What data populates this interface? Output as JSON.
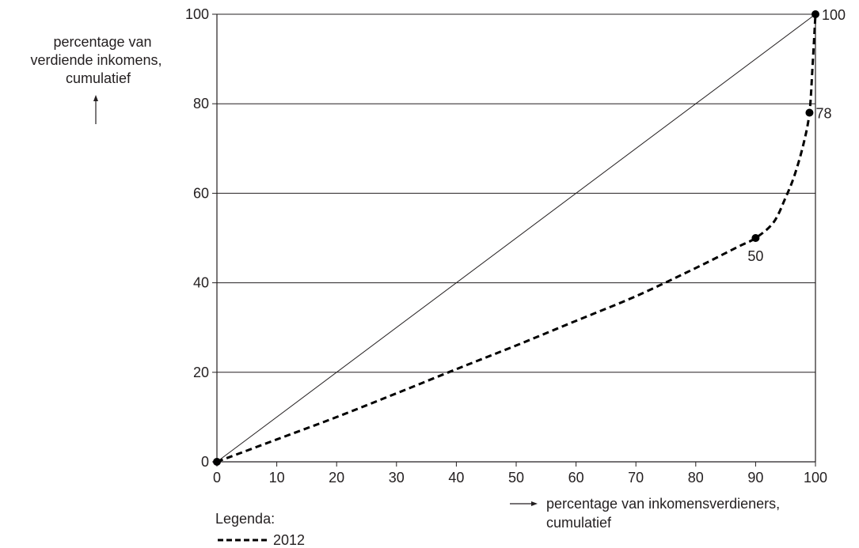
{
  "chart_data": {
    "type": "line",
    "xlabel": "percentage van inkomensverdieners, cumulatief",
    "xlabel_lines": [
      "percentage van inkomensverdieners,",
      "cumulatief"
    ],
    "ylabel": "percentage van verdiende inkomens, cumulatief",
    "ylabel_lines": [
      "percentage van",
      "verdiende inkomens,",
      "cumulatief"
    ],
    "xlim": [
      0,
      100
    ],
    "ylim": [
      0,
      100
    ],
    "x_ticks": [
      0,
      10,
      20,
      30,
      40,
      50,
      60,
      70,
      80,
      90,
      100
    ],
    "y_ticks": [
      0,
      20,
      40,
      60,
      80,
      100
    ],
    "grid": "horizontal",
    "legend": {
      "title": "Legenda:",
      "placement": "bottom-left",
      "entries": [
        {
          "label": "2012",
          "style": "dashed"
        }
      ]
    },
    "series": [
      {
        "name": "2012",
        "style": "dashed",
        "color": "#000000",
        "points": [
          {
            "x": 0,
            "y": 0
          },
          {
            "x": 10,
            "y": 5
          },
          {
            "x": 20,
            "y": 10
          },
          {
            "x": 30,
            "y": 15.3
          },
          {
            "x": 40,
            "y": 20.7
          },
          {
            "x": 50,
            "y": 26
          },
          {
            "x": 60,
            "y": 31.5
          },
          {
            "x": 70,
            "y": 37
          },
          {
            "x": 80,
            "y": 43.3
          },
          {
            "x": 87,
            "y": 48
          },
          {
            "x": 90,
            "y": 50
          },
          {
            "x": 93,
            "y": 53.5
          },
          {
            "x": 95,
            "y": 59
          },
          {
            "x": 96.5,
            "y": 64
          },
          {
            "x": 98,
            "y": 71
          },
          {
            "x": 99,
            "y": 78
          },
          {
            "x": 99.5,
            "y": 88
          },
          {
            "x": 100,
            "y": 100
          }
        ],
        "markers": [
          {
            "x": 0,
            "y": 0,
            "label": ""
          },
          {
            "x": 90,
            "y": 50,
            "label": "50"
          },
          {
            "x": 99,
            "y": 78,
            "label": "78"
          },
          {
            "x": 100,
            "y": 100,
            "label": "100"
          }
        ]
      },
      {
        "style": "solid-thin",
        "color": "#231f20",
        "points": [
          {
            "x": 0,
            "y": 0
          },
          {
            "x": 100,
            "y": 100
          }
        ]
      }
    ]
  }
}
